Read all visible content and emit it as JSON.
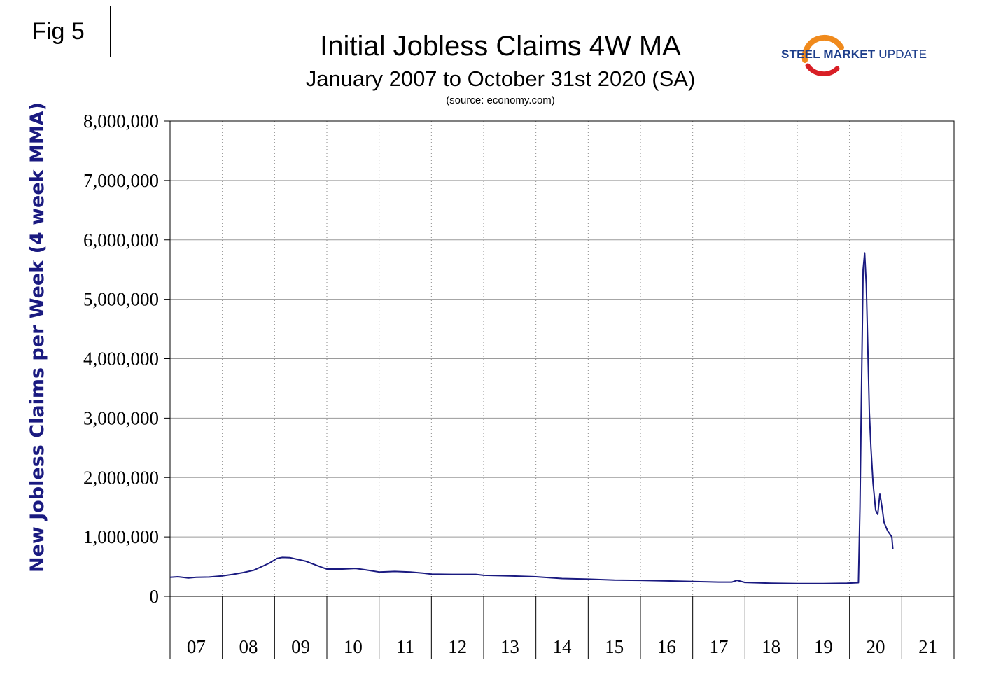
{
  "fig_label": "Fig 5",
  "logo": {
    "bold": "STEEL MARKET",
    "light": "UPDATE"
  },
  "chart_data": {
    "type": "line",
    "title": "Initial Jobless Claims 4W MA",
    "subtitle": "January 2007 to October 31st 2020 (SA)",
    "source": "(source: economy.com)",
    "ylabel": "New Jobless Claims per Week (4 week MMA)",
    "xlabel": "",
    "ylim": [
      0,
      8000000
    ],
    "xlim": [
      2007.0,
      2022.0
    ],
    "grid": true,
    "yticks": [
      {
        "value": 0,
        "label": "0"
      },
      {
        "value": 1000000,
        "label": "1,000,000"
      },
      {
        "value": 2000000,
        "label": "2,000,000"
      },
      {
        "value": 3000000,
        "label": "3,000,000"
      },
      {
        "value": 4000000,
        "label": "4,000,000"
      },
      {
        "value": 5000000,
        "label": "5,000,000"
      },
      {
        "value": 6000000,
        "label": "6,000,000"
      },
      {
        "value": 7000000,
        "label": "7,000,000"
      },
      {
        "value": 8000000,
        "label": "8,000,000"
      }
    ],
    "categories": [
      "07",
      "08",
      "09",
      "10",
      "11",
      "12",
      "13",
      "14",
      "15",
      "16",
      "17",
      "18",
      "19",
      "20",
      "21"
    ],
    "line_color": "#1a1a80",
    "series": [
      {
        "x": [
          2007.0,
          2007.15,
          2007.35,
          2007.5,
          2007.75,
          2008.0,
          2008.2,
          2008.4,
          2008.6,
          2008.75,
          2008.9,
          2009.05,
          2009.15,
          2009.3,
          2009.45,
          2009.6,
          2009.75,
          2009.9,
          2010.0,
          2010.3,
          2010.55,
          2010.75,
          2011.0,
          2011.3,
          2011.6,
          2011.85,
          2012.0,
          2012.4,
          2012.85,
          2013.0,
          2013.5,
          2014.0,
          2014.5,
          2015.0,
          2015.5,
          2016.0,
          2016.5,
          2017.0,
          2017.5,
          2017.75,
          2017.85,
          2018.0,
          2018.5,
          2019.0,
          2019.5,
          2019.95,
          2020.17,
          2020.2,
          2020.23,
          2020.26,
          2020.29,
          2020.32,
          2020.35,
          2020.38,
          2020.41,
          2020.45,
          2020.5,
          2020.54,
          2020.58,
          2020.6,
          2020.63,
          2020.66,
          2020.69,
          2020.73,
          2020.77,
          2020.81,
          2020.83
        ],
        "y": [
          320000,
          330000,
          310000,
          320000,
          325000,
          345000,
          370000,
          400000,
          440000,
          500000,
          560000,
          640000,
          655000,
          650000,
          620000,
          590000,
          540000,
          490000,
          460000,
          460000,
          470000,
          445000,
          410000,
          420000,
          410000,
          390000,
          375000,
          370000,
          370000,
          355000,
          345000,
          330000,
          300000,
          290000,
          275000,
          270000,
          260000,
          250000,
          240000,
          240000,
          270000,
          235000,
          220000,
          215000,
          215000,
          220000,
          230000,
          1500000,
          3500000,
          5500000,
          5780000,
          5250000,
          4200000,
          3100000,
          2500000,
          1900000,
          1450000,
          1380000,
          1720000,
          1620000,
          1450000,
          1250000,
          1180000,
          1100000,
          1050000,
          1000000,
          790000
        ]
      }
    ]
  }
}
